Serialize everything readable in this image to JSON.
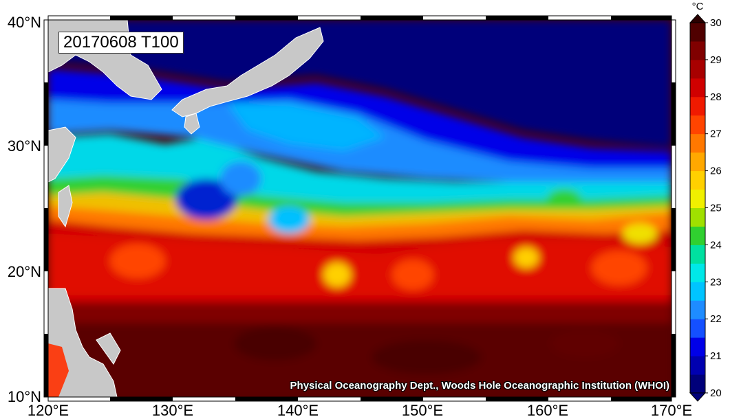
{
  "map": {
    "title": "20170608 T100",
    "credit": "Physical Oceanography Dept., Woods Hole Oceanographic Institution (WHOI)",
    "projection": "equirectangular",
    "extent": {
      "lon": [
        120,
        170
      ],
      "lat": [
        10,
        40
      ]
    },
    "lon_ticks": [
      "120°E",
      "130°E",
      "140°E",
      "150°E",
      "160°E",
      "170°E"
    ],
    "lat_ticks": [
      "10°N",
      "20°N",
      "30°N",
      "40°N"
    ],
    "land_color": "#c8c8c8"
  },
  "colorbar": {
    "unit": "°C",
    "min": 20,
    "max": 30,
    "tick_labels": [
      "20",
      "21",
      "22",
      "23",
      "24",
      "25",
      "26",
      "27",
      "28",
      "29",
      "30"
    ],
    "colors": [
      "#00007a",
      "#0000b0",
      "#0000e8",
      "#1450ff",
      "#1e8cff",
      "#00c4ff",
      "#00e8e8",
      "#00e0a0",
      "#30d030",
      "#a0e000",
      "#f0f000",
      "#ffd000",
      "#ffa800",
      "#ff7800",
      "#ff4400",
      "#f01a00",
      "#d00000",
      "#a80000",
      "#800000",
      "#500000"
    ],
    "under_color": "#00007a",
    "over_color": "#2a0000"
  }
}
